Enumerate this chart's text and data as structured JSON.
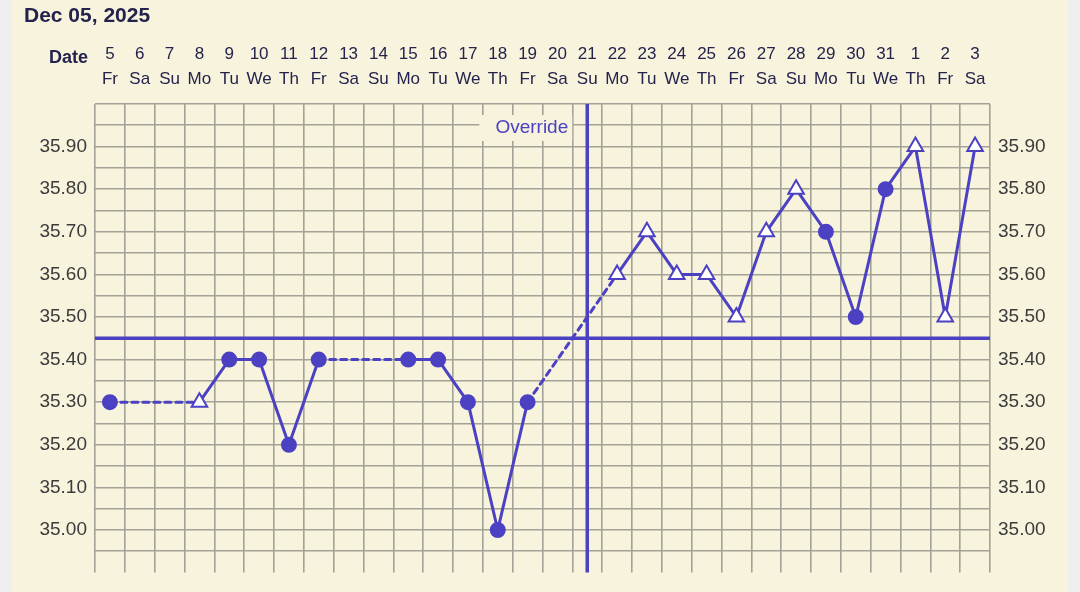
{
  "chart_data": {
    "type": "line",
    "title": "Dec 05, 2025",
    "xlabel": "Date",
    "categories": [
      "5\nFr",
      "6\nSa",
      "7\nSu",
      "8\nMo",
      "9\nTu",
      "10\nWe",
      "11\nTh",
      "12\nFr",
      "13\nSa",
      "14\nSu",
      "15\nMo",
      "16\nTu",
      "17\nWe",
      "18\nTh",
      "19\nFr",
      "20\nSa",
      "21\nSu",
      "22\nMo",
      "23\nTu",
      "24\nWe",
      "25\nTh",
      "26\nFr",
      "27\nSa",
      "28\nSu",
      "29\nMo",
      "30\nTu",
      "31\nWe",
      "1\nTh",
      "2\nFr",
      "3\nSa"
    ],
    "series": [
      {
        "color": "#4b41c2",
        "marker": "none",
        "values": [
          35.3,
          null,
          null,
          35.3,
          35.4,
          35.4,
          35.2,
          35.4,
          null,
          null,
          35.4,
          35.4,
          35.3,
          35.0,
          35.3,
          null,
          null,
          35.6,
          35.7,
          35.6,
          35.6,
          35.5,
          35.7,
          35.8,
          35.7,
          35.5,
          35.8,
          35.9,
          35.5,
          35.9
        ]
      },
      {
        "type": "scatter",
        "color": "#4b41c2",
        "marker": "circle",
        "values": [
          35.3,
          null,
          null,
          null,
          35.4,
          35.4,
          35.2,
          35.4,
          null,
          null,
          35.4,
          35.4,
          35.3,
          35.0,
          35.3,
          null,
          null,
          null,
          null,
          null,
          null,
          null,
          null,
          null,
          35.7,
          35.5,
          35.8,
          null,
          null,
          null
        ]
      },
      {
        "type": "scatter",
        "color": "#4b41c2",
        "marker": "triangle",
        "values": [
          null,
          null,
          null,
          35.3,
          null,
          null,
          null,
          null,
          null,
          null,
          null,
          null,
          null,
          null,
          null,
          null,
          null,
          35.6,
          35.7,
          35.6,
          35.6,
          35.5,
          35.7,
          35.8,
          null,
          null,
          null,
          35.9,
          35.5,
          35.9
        ]
      }
    ],
    "ylim": [
      34.9,
      36.0
    ],
    "yticks": [
      {
        "value": 34.95,
        "label": null
      },
      {
        "value": 35.0,
        "label": "35.00"
      },
      {
        "value": 35.05,
        "label": null
      },
      {
        "value": 35.1,
        "label": "35.10"
      },
      {
        "value": 35.15,
        "label": null
      },
      {
        "value": 35.2,
        "label": "35.20"
      },
      {
        "value": 35.25,
        "label": null
      },
      {
        "value": 35.3,
        "label": "35.30"
      },
      {
        "value": 35.35,
        "label": null
      },
      {
        "value": 35.4,
        "label": "35.40"
      },
      {
        "value": 35.5,
        "label": "35.50"
      },
      {
        "value": 35.55,
        "label": null
      },
      {
        "value": 35.6,
        "label": "35.60"
      },
      {
        "value": 35.65,
        "label": null
      },
      {
        "value": 35.7,
        "label": "35.70"
      },
      {
        "value": 35.75,
        "label": null
      },
      {
        "value": 35.8,
        "label": "35.80"
      },
      {
        "value": 35.85,
        "label": null
      },
      {
        "value": 35.9,
        "label": "35.90"
      },
      {
        "value": 35.95,
        "label": null
      },
      {
        "value": 36.0,
        "label": null
      }
    ],
    "y2lim": [
      34.9,
      36.0
    ],
    "y2ticks": [
      {
        "value": 35.0,
        "label": "35.00"
      },
      {
        "value": 35.1,
        "label": "35.10"
      },
      {
        "value": 35.2,
        "label": "35.20"
      },
      {
        "value": 35.3,
        "label": "35.30"
      },
      {
        "value": 35.4,
        "label": "35.40"
      },
      {
        "value": 35.5,
        "label": "35.50"
      },
      {
        "value": 35.6,
        "label": "35.60"
      },
      {
        "value": 35.7,
        "label": "35.70"
      },
      {
        "value": 35.8,
        "label": "35.80"
      },
      {
        "value": 35.9,
        "label": "35.90"
      }
    ],
    "ref_lines": [
      {
        "axis": "x",
        "value": "21\nSu",
        "label": "Override",
        "color": "#4b41c2"
      },
      {
        "axis": "y",
        "value": 35.45,
        "color": "#4b41c2"
      }
    ],
    "grid": true,
    "legend": false
  }
}
